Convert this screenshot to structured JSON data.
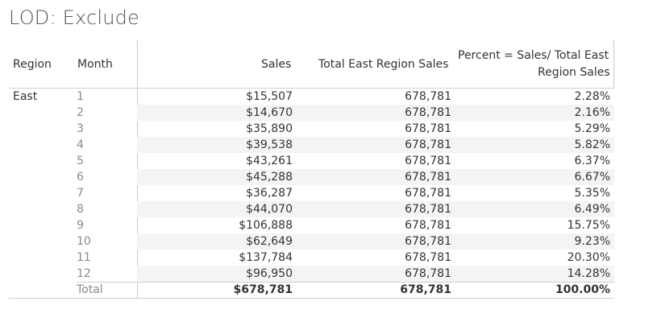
{
  "title": "LOD: Exclude",
  "headers": {
    "region": "Region",
    "month": "Month",
    "sales": "Sales",
    "total_east": "Total East Region Sales",
    "percent_line1": "Percent = Sales/ Total East",
    "percent_line2": "Region Sales"
  },
  "region_value": "East",
  "rows": [
    {
      "month": "1",
      "sales": "$15,507",
      "total": "678,781",
      "percent": "2.28%"
    },
    {
      "month": "2",
      "sales": "$14,670",
      "total": "678,781",
      "percent": "2.16%"
    },
    {
      "month": "3",
      "sales": "$35,890",
      "total": "678,781",
      "percent": "5.29%"
    },
    {
      "month": "4",
      "sales": "$39,538",
      "total": "678,781",
      "percent": "5.82%"
    },
    {
      "month": "5",
      "sales": "$43,261",
      "total": "678,781",
      "percent": "6.37%"
    },
    {
      "month": "6",
      "sales": "$45,288",
      "total": "678,781",
      "percent": "6.67%"
    },
    {
      "month": "7",
      "sales": "$36,287",
      "total": "678,781",
      "percent": "5.35%"
    },
    {
      "month": "8",
      "sales": "$44,070",
      "total": "678,781",
      "percent": "6.49%"
    },
    {
      "month": "9",
      "sales": "$106,888",
      "total": "678,781",
      "percent": "15.75%"
    },
    {
      "month": "10",
      "sales": "$62,649",
      "total": "678,781",
      "percent": "9.23%"
    },
    {
      "month": "11",
      "sales": "$137,784",
      "total": "678,781",
      "percent": "20.30%"
    },
    {
      "month": "12",
      "sales": "$96,950",
      "total": "678,781",
      "percent": "14.28%"
    }
  ],
  "total": {
    "label": "Total",
    "sales": "$678,781",
    "total": "678,781",
    "percent": "100.00%"
  },
  "colors": {
    "alt_row": "#f4f4f4",
    "grid": "#c8c8c8",
    "text": "#333333",
    "month_text": "#8a8a8a"
  }
}
